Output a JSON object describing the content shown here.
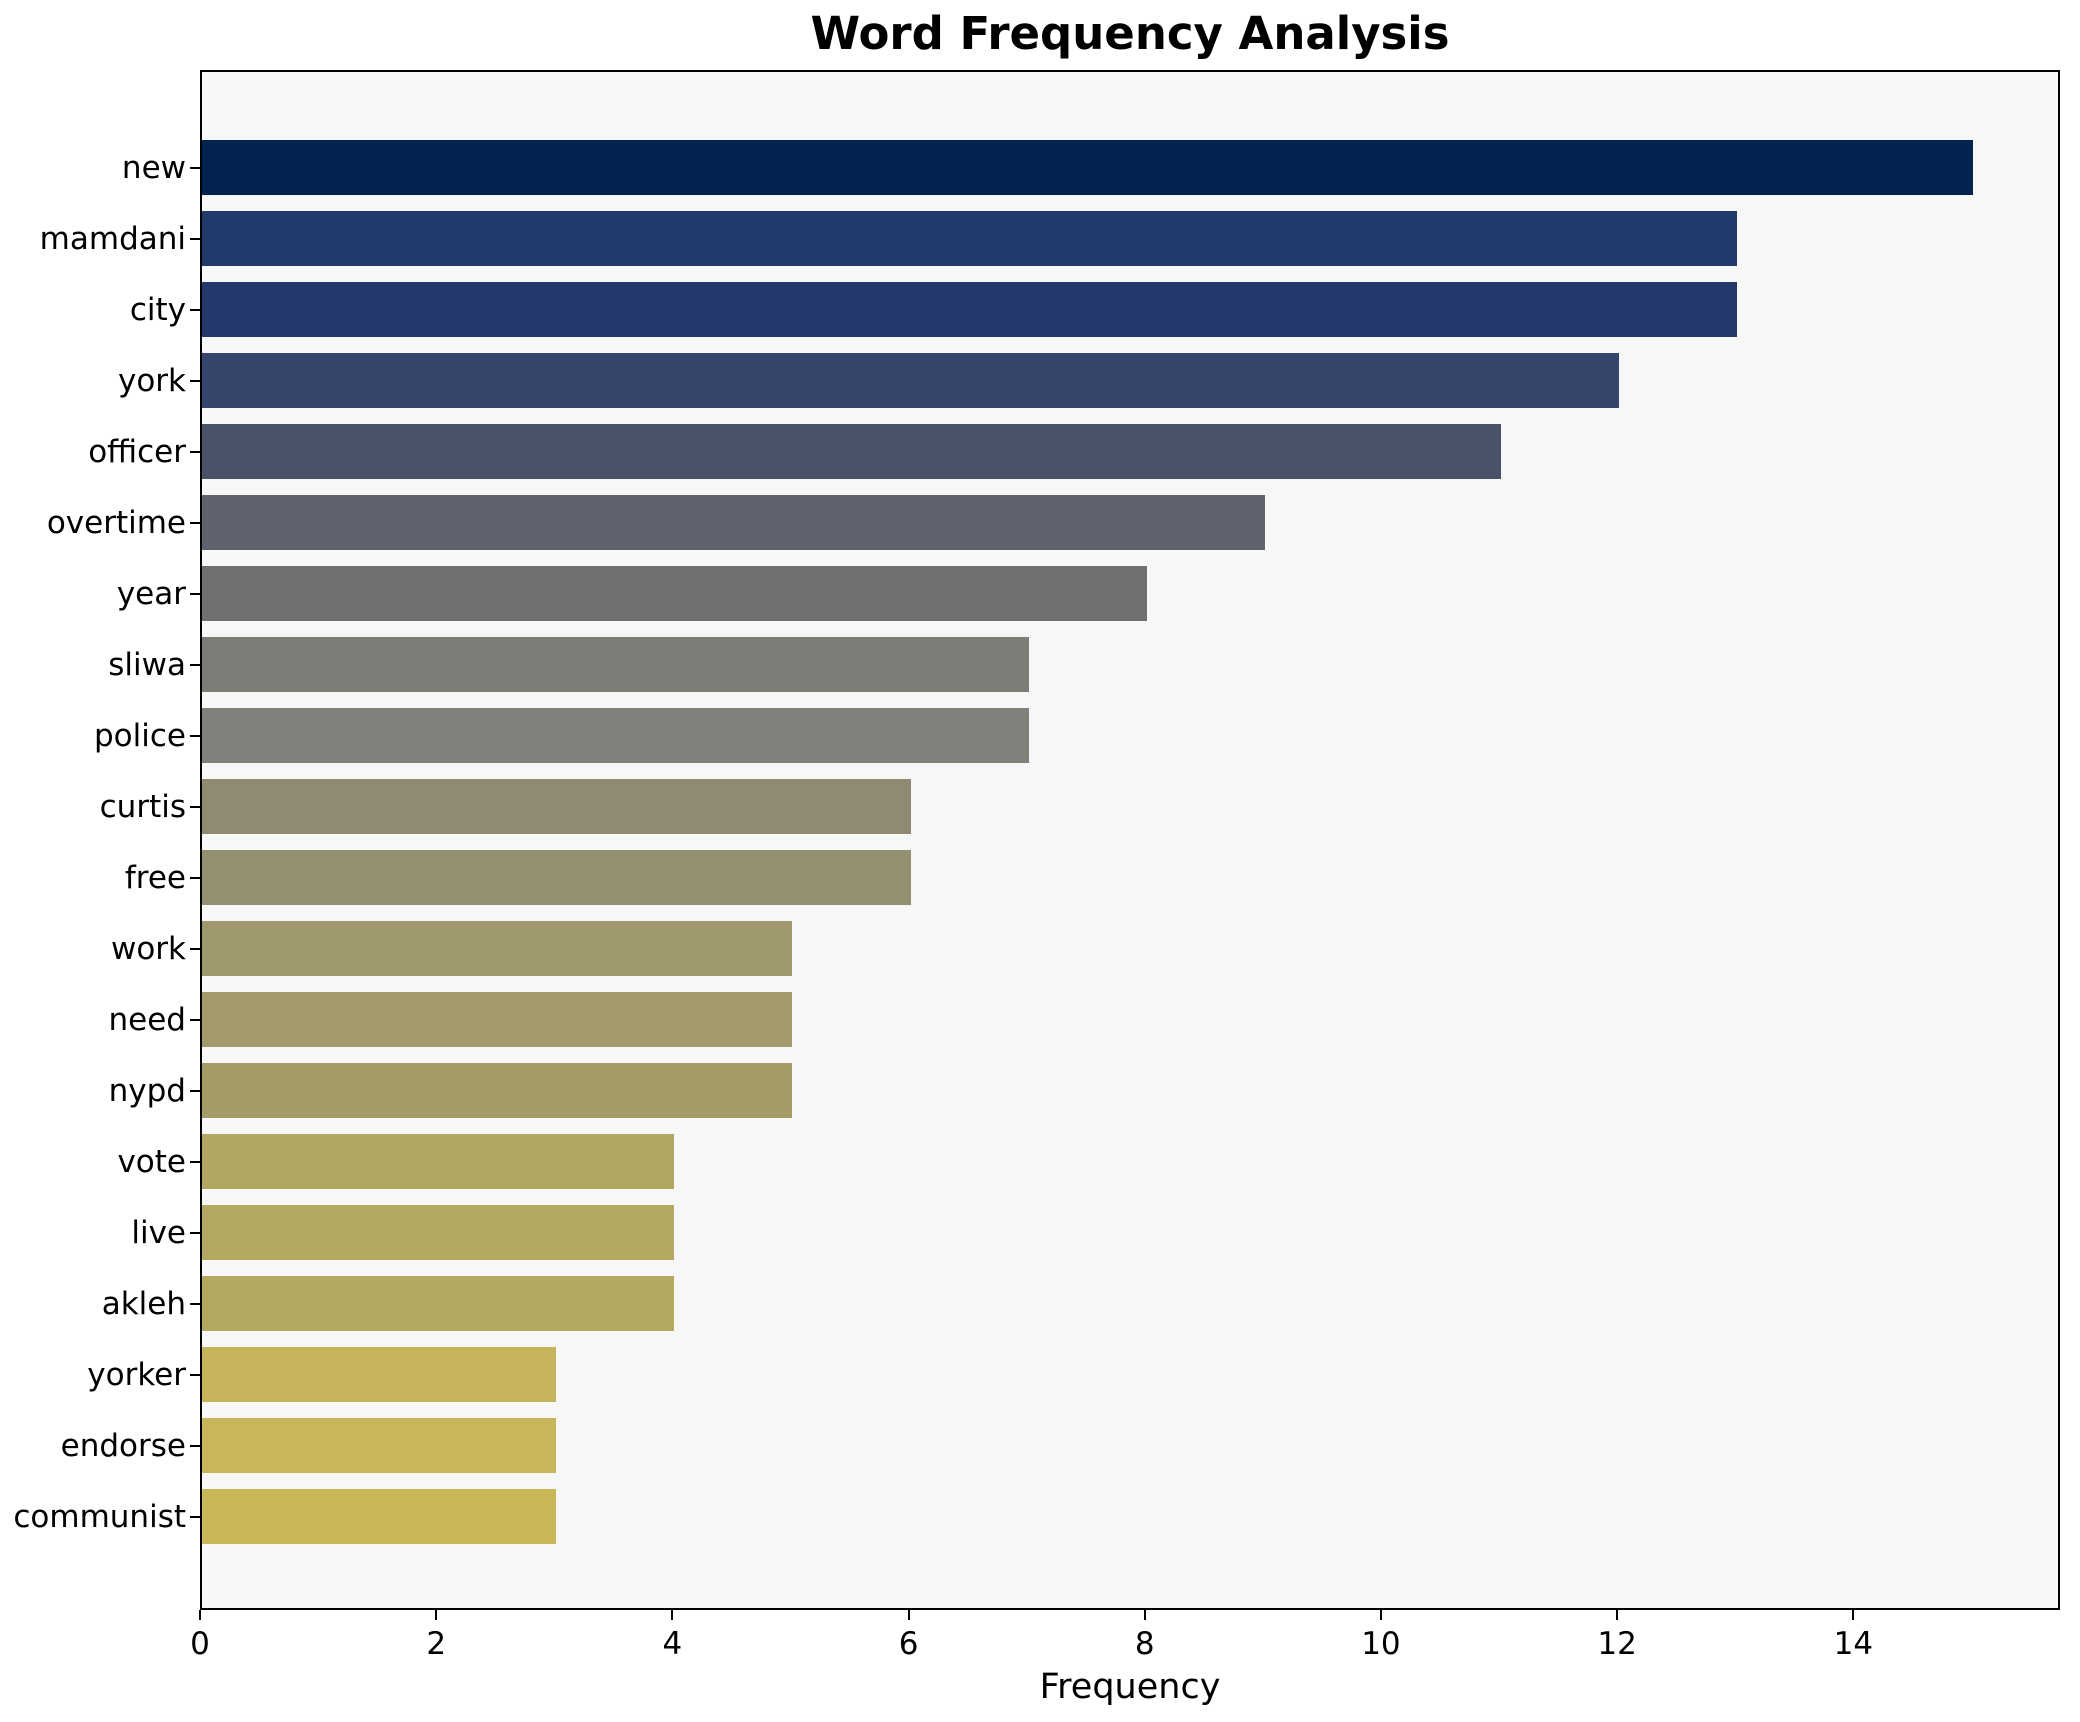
{
  "chart_data": {
    "type": "bar",
    "orientation": "horizontal",
    "title": "Word Frequency Analysis",
    "xlabel": "Frequency",
    "ylabel": "",
    "categories": [
      "new",
      "mamdani",
      "city",
      "york",
      "officer",
      "overtime",
      "year",
      "sliwa",
      "police",
      "curtis",
      "free",
      "work",
      "need",
      "nypd",
      "vote",
      "live",
      "akleh",
      "yorker",
      "endorse",
      "communist"
    ],
    "values": [
      15,
      13,
      13,
      12,
      11,
      9,
      8,
      7,
      7,
      6,
      6,
      5,
      5,
      5,
      4,
      4,
      4,
      3,
      3,
      3
    ],
    "bar_colors": [
      "#01234e",
      "#1f3a6b",
      "#23396b",
      "#36456c",
      "#4a5268",
      "#60626e",
      "#6f7072",
      "#7d7c77",
      "#82807a",
      "#8f8b73",
      "#939070",
      "#a0986d",
      "#a29a6b",
      "#a49b69",
      "#b1a762",
      "#b3a960",
      "#b4aa5f",
      "#c5b45c",
      "#c7b65a",
      "#c9b858"
    ],
    "xlim": [
      0,
      15.75
    ],
    "xticks": [
      0,
      2,
      4,
      6,
      8,
      10,
      12,
      14
    ],
    "grid": false,
    "legend": null,
    "plot_background": "#f7f7f7",
    "figure_background": "#ffffff",
    "axis_color": "#000000",
    "text_color": "#000000"
  }
}
